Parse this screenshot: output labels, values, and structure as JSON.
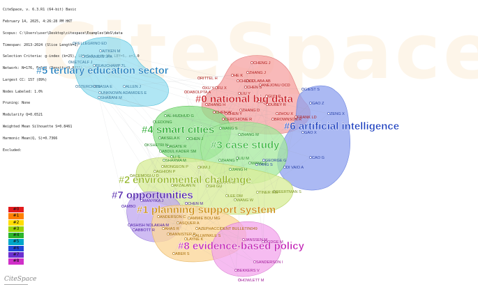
{
  "header_lines": [
    "CiteSpace, v. 6.3.R1 (64-bit) Basic",
    "February 14, 2025, 4:26:28 PM HKT",
    "Scopus: C:\\Users\\user\\Desktop\\citespace\\Examples\\WoS\\data",
    "Timespan: 2013-2024 (Slice Length=1)",
    "Selection Criteria: g-index (k=25), LRF=3.0, L/N=10, LBY=5, e=1.0",
    "Network: N=176, E=548 (Density=0.0355)",
    "Largest CC: 157 (89%)",
    "Nodes Labeled: 1.0%",
    "Pruning: None",
    "Modularity Q=0.6521",
    "Weighted Mean Silhouette S=0.8461",
    "Harmonic Mean(Q, S)=0.7366",
    "Excluded:"
  ],
  "watermark": "CiteSpace",
  "clusters": [
    {
      "id": "c5",
      "label": "#5 tertiary education sector",
      "color": "#1a7bbd",
      "fill": "#8fdcef"
    },
    {
      "id": "c0",
      "label": "#0 national big data",
      "color": "#c8161d",
      "fill": "#f5a1a1"
    },
    {
      "id": "c6",
      "label": "#6 artificial intelligence",
      "color": "#1c3fbf",
      "fill": "#8fa2ef"
    },
    {
      "id": "c4",
      "label": "#4 smart cities",
      "color": "#26a92b",
      "fill": "#8ee08a"
    },
    {
      "id": "c3",
      "label": "#3 case study",
      "color": "#36b53b",
      "fill": "#a6ea9e"
    },
    {
      "id": "c2",
      "label": "#2 environmental challenge",
      "color": "#8fb31f",
      "fill": "#d9ee9c"
    },
    {
      "id": "c7",
      "label": "#7 opportunities",
      "color": "#4b1ba8",
      "fill": "#bfa5ef"
    },
    {
      "id": "c1",
      "label": "#1 planning support system",
      "color": "#c98a0c",
      "fill": "#fbd79b"
    },
    {
      "id": "c8",
      "label": "#8 evidence-based policy",
      "color": "#c11fb4",
      "fill": "#f3a6ec"
    }
  ],
  "authors": [
    {
      "t": "PELLEGRINO ED",
      "c": "#3a7aa0"
    },
    {
      "t": "AITKEN M",
      "c": "#3a7aa0"
    },
    {
      "t": "IOANNIDIS JPA",
      "c": "#3a7aa0"
    },
    {
      "t": "METCALF J",
      "c": "#3a7aa0"
    },
    {
      "t": "BEAUCHAMP TL",
      "c": "#3a7aa0"
    },
    {
      "t": "ALLEN J",
      "c": "#3a7aa0"
    },
    {
      "t": "STERCKX S",
      "c": "#3a7aa0"
    },
    {
      "t": "BIASIA E",
      "c": "#3a7aa0"
    },
    {
      "t": "UNKNOWN ADAMIDES E",
      "c": "#3a7aa0"
    },
    {
      "t": "SHABANI M",
      "c": "#3a7aa0"
    },
    {
      "t": "CHENG J",
      "c": "#b02020"
    },
    {
      "t": "ZHANG J",
      "c": "#b02020"
    },
    {
      "t": "HE K",
      "c": "#b02020"
    },
    {
      "t": "RITTEL H",
      "c": "#b02020"
    },
    {
      "t": "CHEN C",
      "c": "#b02020"
    },
    {
      "t": "CULABA AB",
      "c": "#b02020"
    },
    {
      "t": "CHEN S",
      "c": "#b02020"
    },
    {
      "t": "XU Y",
      "c": "#b02020"
    },
    {
      "t": "FU X",
      "c": "#b02020"
    },
    {
      "t": "ANEJONU OCD",
      "c": "#b02020"
    },
    {
      "t": "DABOLPTA A",
      "c": "#b02020"
    },
    {
      "t": "LIU Y",
      "c": "#b02020"
    },
    {
      "t": "GUO R",
      "c": "#b02020"
    },
    {
      "t": "DUBEY R",
      "c": "#b02020"
    },
    {
      "t": "ZHANG H",
      "c": "#b02020"
    },
    {
      "t": "LI Y",
      "c": "#b02020"
    },
    {
      "t": "CHEN Y",
      "c": "#b02020"
    },
    {
      "t": "ZHANG D",
      "c": "#b02020"
    },
    {
      "t": "ZHOU X",
      "c": "#b02020"
    },
    {
      "t": "FRANK LD",
      "c": "#b02020"
    },
    {
      "t": "BROWNSON R",
      "c": "#b02020"
    },
    {
      "t": "CERCHIONE R",
      "c": "#b02020"
    },
    {
      "t": "CHEN W",
      "c": "#b02020"
    },
    {
      "t": "GIEST S",
      "c": "#2a42a8"
    },
    {
      "t": "GAO Z",
      "c": "#2a42a8"
    },
    {
      "t": "ZENG X",
      "c": "#2a42a8"
    },
    {
      "t": "GAO X",
      "c": "#2a42a8"
    },
    {
      "t": "CAO G",
      "c": "#2a42a8"
    },
    {
      "t": "DI VAIO A",
      "c": "#2a42a8"
    },
    {
      "t": "GEORGE G",
      "c": "#2a42a8"
    },
    {
      "t": "YANG S",
      "c": "#2a42a8"
    },
    {
      "t": "AL-HUDHUD G",
      "c": "#2b8c2f"
    },
    {
      "t": "LEDONG",
      "c": "#2b8c2f"
    },
    {
      "t": "AKSELA K",
      "c": "#2b8c2f"
    },
    {
      "t": "KSHETRI N",
      "c": "#2b8c2f"
    },
    {
      "t": "AGATE R",
      "c": "#2b8c2f"
    },
    {
      "t": "ABDUL KADER SM",
      "c": "#2b8c2f"
    },
    {
      "t": "SHARMA M",
      "c": "#2b8c2f"
    },
    {
      "t": "CHEN J",
      "c": "#2b8c2f"
    },
    {
      "t": "WANG S",
      "c": "#2b8c2f"
    },
    {
      "t": "ZHANG M",
      "c": "#2b8c2f"
    },
    {
      "t": "ZHANG Y",
      "c": "#2b8c2f"
    },
    {
      "t": "LIU M",
      "c": "#2b8c2f"
    },
    {
      "t": "WANG Z",
      "c": "#2b8c2f"
    },
    {
      "t": "JIANG H",
      "c": "#2b8c2f"
    },
    {
      "t": "LI S",
      "c": "#2b8c2f"
    },
    {
      "t": "MONGEON P",
      "c": "#7a9420"
    },
    {
      "t": "AGHION P",
      "c": "#7a9420"
    },
    {
      "t": "ACEMOGLU D",
      "c": "#7a9420"
    },
    {
      "t": "KIM J",
      "c": "#7a9420"
    },
    {
      "t": "AFZALAN N",
      "c": "#7a9420"
    },
    {
      "t": "SHI GU",
      "c": "#7a9420"
    },
    {
      "t": "BATTY M",
      "c": "#7a9420"
    },
    {
      "t": "LEE DM",
      "c": "#7a9420"
    },
    {
      "t": "WANG W",
      "c": "#7a9420"
    },
    {
      "t": "TINER RW",
      "c": "#7a9420"
    },
    {
      "t": "GEERTMAN S",
      "c": "#7a9420"
    },
    {
      "t": "AMBO",
      "c": "#4b1ba8"
    },
    {
      "t": "MANYIKA J",
      "c": "#4b1ba8"
    },
    {
      "t": "CHEN M",
      "c": "#4b1ba8"
    },
    {
      "t": "ASHISH NOLAKHA M",
      "c": "#4b1ba8"
    },
    {
      "t": "ABBOTT R",
      "c": "#4b1ba8"
    },
    {
      "t": "ANDERSON C",
      "c": "#a8700c"
    },
    {
      "t": "AMMIE BOU MG",
      "c": "#a8700c"
    },
    {
      "t": "ASQUER A",
      "c": "#a8700c"
    },
    {
      "t": "AHAS R",
      "c": "#a8700c"
    },
    {
      "t": "AZEPHACCIDENT BULLETIN049",
      "c": "#a8700c"
    },
    {
      "t": "BANNISTER P",
      "c": "#a8700c"
    },
    {
      "t": "ALLWINKLE S",
      "c": "#a8700c"
    },
    {
      "t": "LAYNE K",
      "c": "#a8700c"
    },
    {
      "t": "ABER S",
      "c": "#a8700c"
    },
    {
      "t": "JANSSEN M",
      "c": "#a01c98"
    },
    {
      "t": "DODGE M",
      "c": "#a01c98"
    },
    {
      "t": "SANDERSON I",
      "c": "#a01c98"
    },
    {
      "t": "BEKKERS V",
      "c": "#a01c98"
    },
    {
      "t": "HOWLETT M",
      "c": "#a01c98"
    }
  ],
  "legend": [
    "#0",
    "#1",
    "#2",
    "#3",
    "#4",
    "#5",
    "#6",
    "#7",
    "#8"
  ],
  "legend_colors": [
    "#e31a1c",
    "#ff7f00",
    "#ffdd00",
    "#9ad400",
    "#2cb52c",
    "#00a6c9",
    "#2147d9",
    "#6b2fd0",
    "#d02fc8"
  ],
  "logo": "CiteSpace"
}
